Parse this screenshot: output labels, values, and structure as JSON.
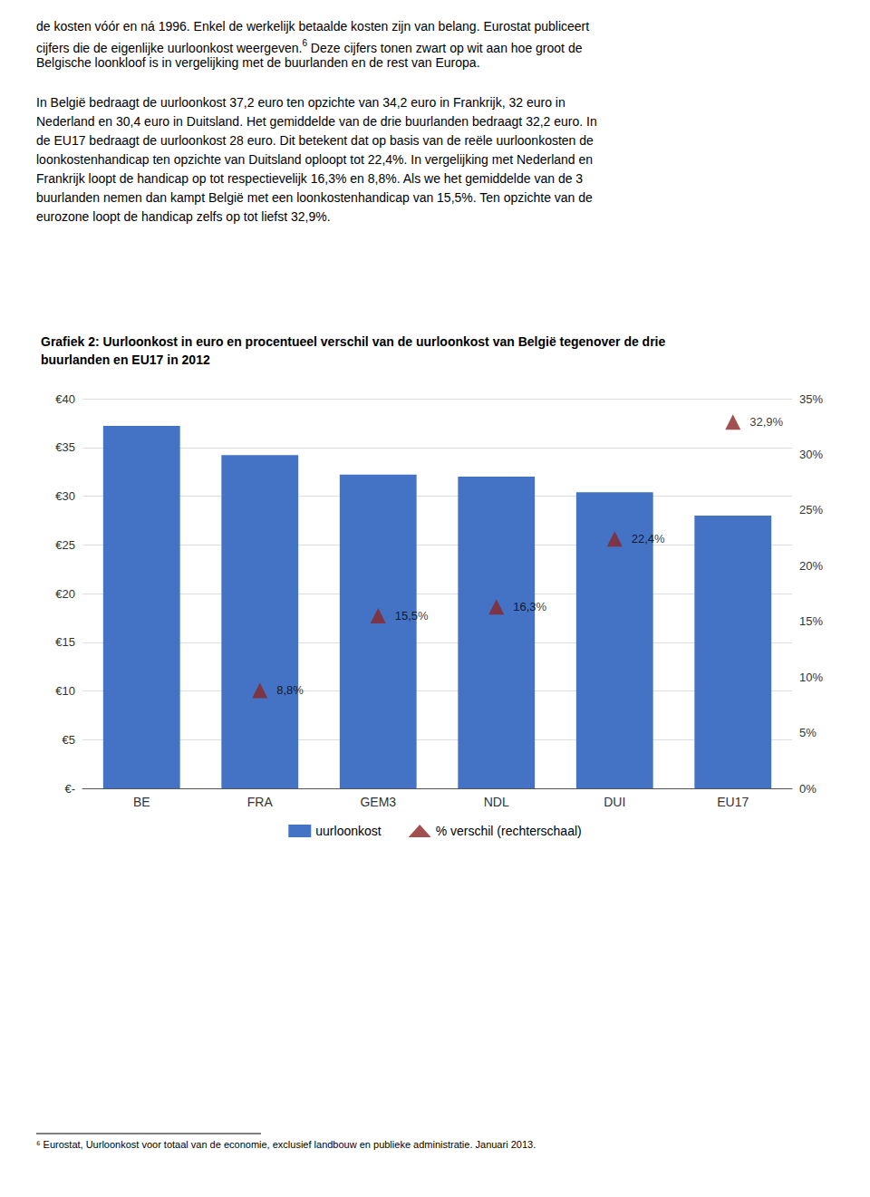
{
  "chart_data": {
    "type": "bar",
    "title": "Grafiek 2: Uurloonkost in euro en procentueel verschil van de uurloonkost van België tegenover de drie\nbuurlanden en EU17 in 2012",
    "annotations": [
      "de kosten vóór en ná 1996. Enkel de werkelijk betaalde kosten zijn van belang. Eurostat publiceert",
      "cijfers die de eigenlijke uurloonkost weergeven.",
      "6",
      " Deze cijfers tonen zwart op wit aan hoe groot de",
      "Belgische loonkloof is in vergelijking met de buurlanden en de rest van Europa.",
      "In België bedraagt de uurloonkost 37,2 euro ten opzichte van 34,2 euro in Frankrijk, 32 euro in\nNederland en 30,4 euro in Duitsland. Het gemiddelde van de drie buurlanden bedraagt 32,2 euro. In\nde EU17 bedraagt de uurloonkost 28 euro. Dit betekent dat op basis van de reële uurloonkosten de\nloonkostenhandicap ten opzichte van Duitsland oploopt tot 22,4%. In vergelijking met Nederland en\nFrankrijk loopt de handicap op tot respectievelijk 16,3% en 8,8%. Als we het gemiddelde van de 3\nbuurlanden nemen dan kampt België met een loonkostenhandicap van 15,5%. Ten opzichte van de\neurozone loopt de handicap zelfs op tot liefst 32,9%.",
      "⁶ Eurostat, Uurloonkost voor totaal van de economie, exclusief landbouw en publieke administratie. Januari 2013."
    ],
    "categories": [
      "BE",
      "FRA",
      "GEM3",
      "NDL",
      "DUI",
      "EU17"
    ],
    "series": [
      {
        "name": "uurloonkost",
        "type": "bar",
        "color": "#4472C4",
        "values": [
          37.2,
          34.2,
          32.2,
          32.0,
          30.4,
          28.0
        ]
      },
      {
        "name": "% verschil (rechterschaal)",
        "type": "scatter",
        "marker": "triangle",
        "color": "#8B2525",
        "axis": "y2",
        "data_labels": true,
        "values": [
          null,
          0.088,
          0.155,
          0.163,
          0.224,
          0.329
        ],
        "value_labels": [
          null,
          "8,8%",
          "15,5%",
          "16,3%",
          "22,4%",
          "32,9%"
        ]
      }
    ],
    "ylim": [
      0,
      40
    ],
    "yticks": [
      {
        "value": 0,
        "label": "€-"
      },
      {
        "value": 5,
        "label": "€5"
      },
      {
        "value": 10,
        "label": "€10"
      },
      {
        "value": 15,
        "label": "€15"
      },
      {
        "value": 20,
        "label": "€20"
      },
      {
        "value": 25,
        "label": "€25"
      },
      {
        "value": 30,
        "label": "€30"
      },
      {
        "value": 35,
        "label": "€35"
      },
      {
        "value": 40,
        "label": "€40"
      }
    ],
    "y2lim": [
      0,
      0.35
    ],
    "y2ticks": [
      {
        "value": 0,
        "label": "0%"
      },
      {
        "value": 0.05,
        "label": "5%"
      },
      {
        "value": 0.1,
        "label": "10%"
      },
      {
        "value": 0.15,
        "label": "15%"
      },
      {
        "value": 0.2,
        "label": "20%"
      },
      {
        "value": 0.25,
        "label": "25%"
      },
      {
        "value": 0.3,
        "label": "30%"
      },
      {
        "value": 0.35,
        "label": "35%"
      }
    ],
    "grid": true,
    "legend": "bottom"
  }
}
